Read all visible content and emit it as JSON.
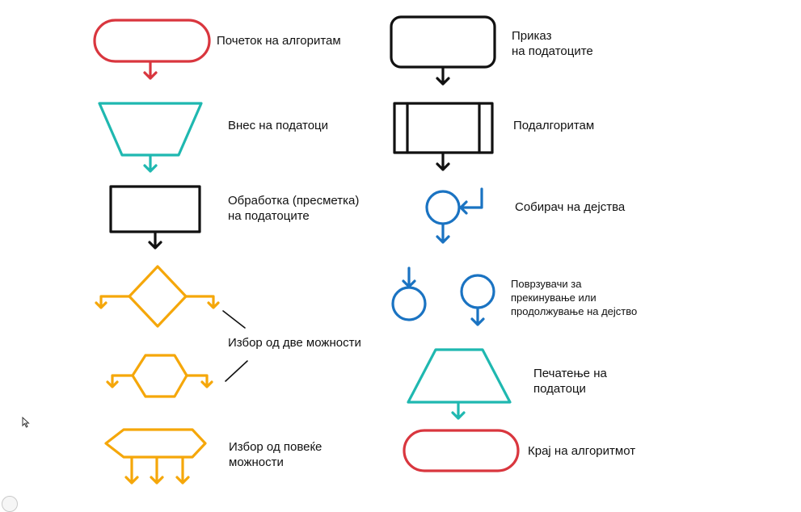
{
  "colors": {
    "red": "#d9363e",
    "cyan": "#1fb8b0",
    "black": "#111111",
    "blue": "#1a73c2",
    "orange": "#f5a70a"
  },
  "labels": {
    "start": "Почеток на алгоритам",
    "input": "Внес на податоци",
    "process_line1": "Обработка (пресметка)",
    "process_line2": "на податоците",
    "choice_two": "Избор од две можности",
    "choice_many_line1": "Избор од повеќе",
    "choice_many_line2": "можности",
    "display_line1": "Приказ",
    "display_line2": "на податоците",
    "subalgorithm": "Подалгоритам",
    "collector": "Собирач на дејства",
    "connectors_line1": "Поврзувачи за",
    "connectors_line2": "прекинување или",
    "connectors_line3": "продолжување на дејство",
    "print_line1": "Печатење на",
    "print_line2": "податоци",
    "end": "Крај на алгоритмот"
  },
  "icons": {
    "cursor": "mouse-pointer-icon",
    "badge": "watermark-badge-icon"
  }
}
